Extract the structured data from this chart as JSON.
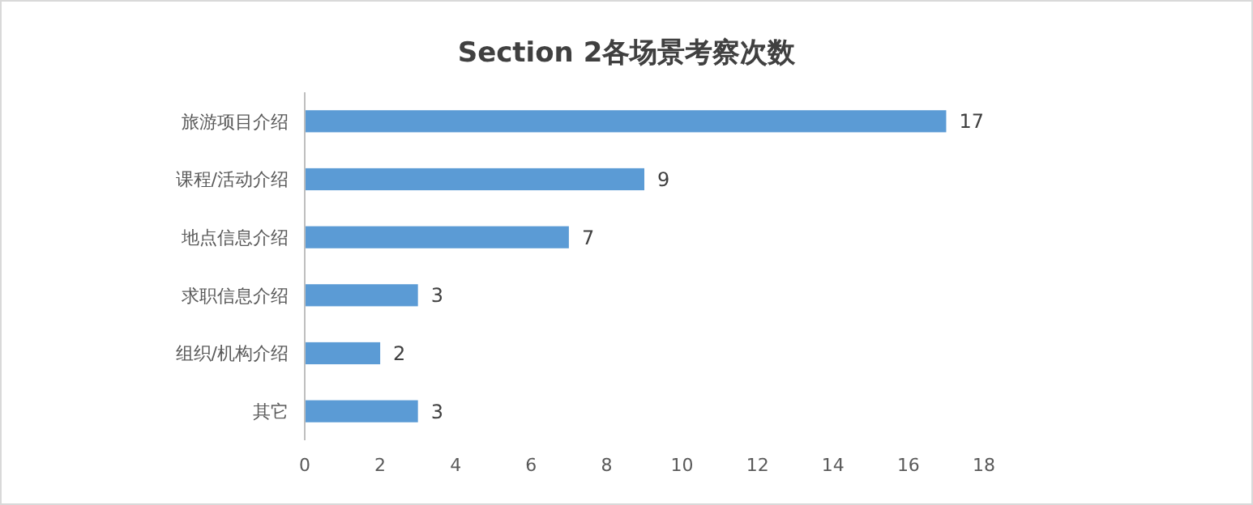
{
  "chart_data": {
    "type": "bar",
    "title": "Section 2各场景考察次数",
    "orientation": "horizontal",
    "categories": [
      "旅游项目介绍",
      "课程/活动介绍",
      "地点信息介绍",
      "求职信息介绍",
      "组织/机构介绍",
      "其它"
    ],
    "values": [
      17,
      9,
      7,
      3,
      2,
      3
    ],
    "color": "#5b9bd5",
    "xlim": [
      0,
      18
    ],
    "xticks": [
      0,
      2,
      4,
      6,
      8,
      10,
      12,
      14,
      16,
      18
    ],
    "grid": false,
    "data_labels": true
  }
}
